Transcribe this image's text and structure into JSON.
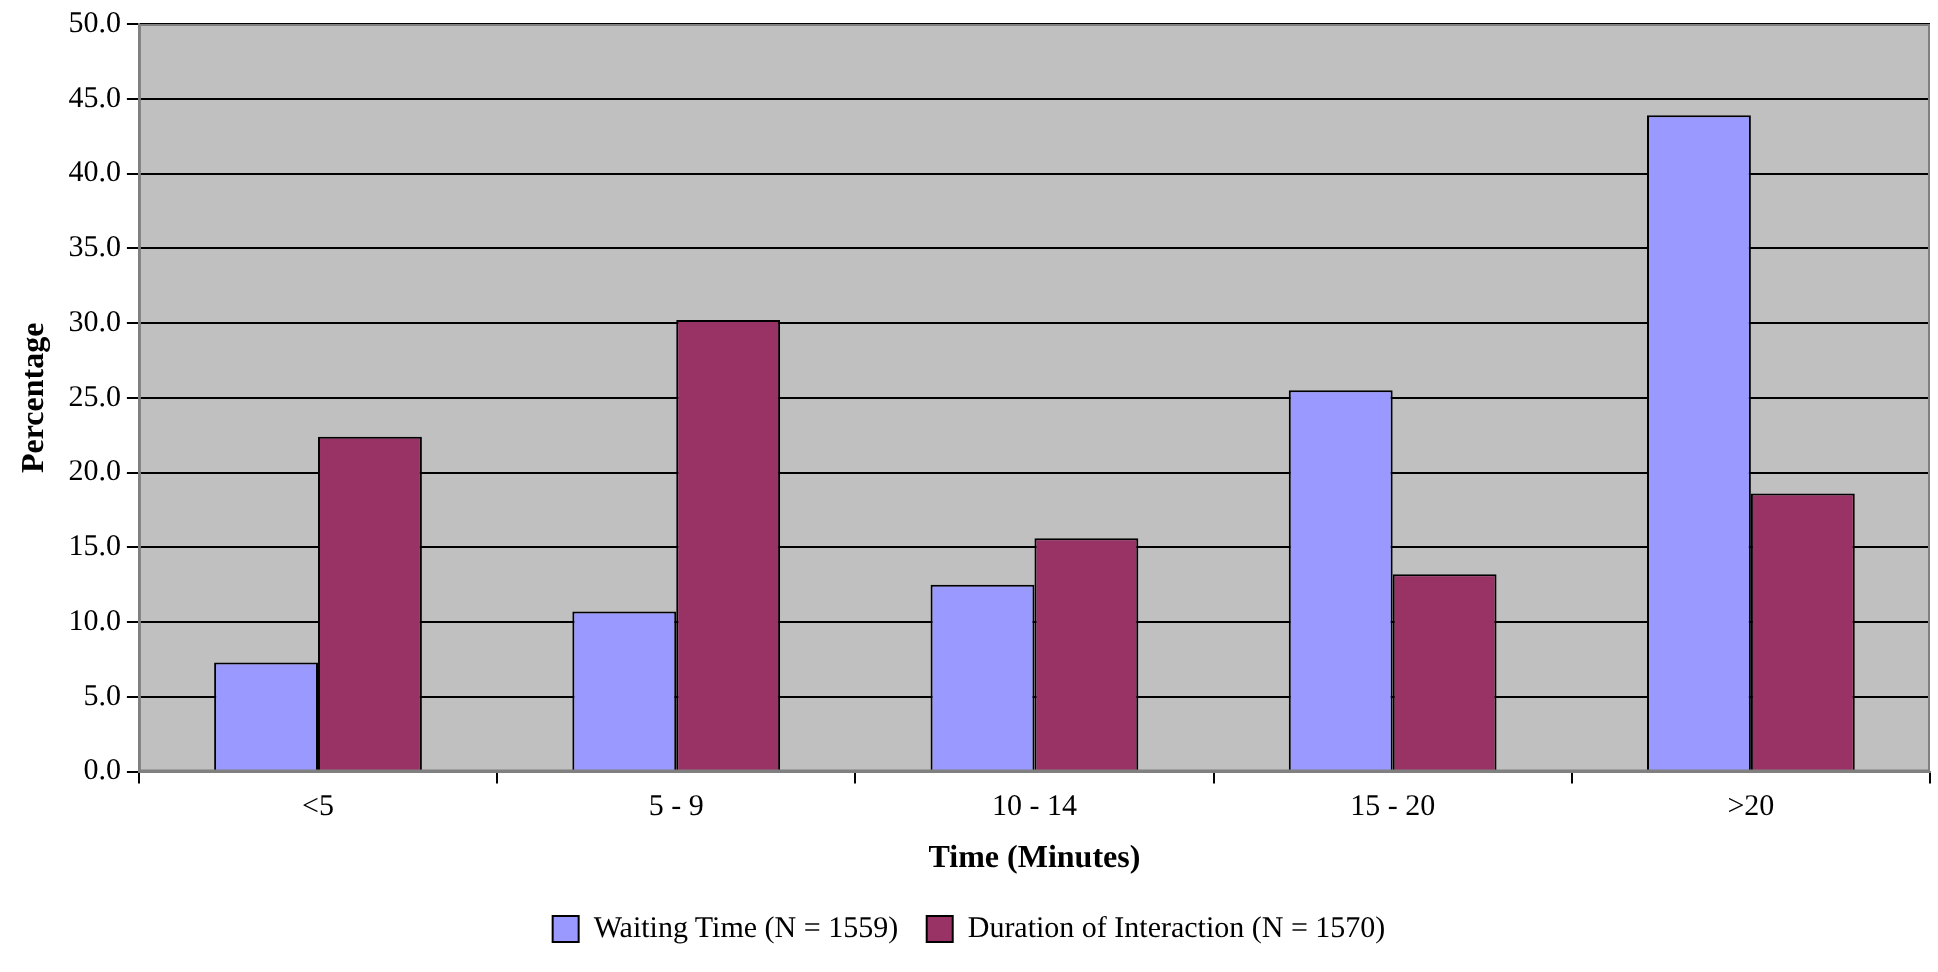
{
  "chart_data": {
    "type": "bar",
    "xlabel": "Time (Minutes)",
    "ylabel": "Percentage",
    "categories": [
      "<5",
      "5 - 9",
      "10 - 14",
      "15 - 20",
      ">20"
    ],
    "series": [
      {
        "name": "Waiting Time (N = 1559)",
        "color": "#9999ff",
        "values": [
          7.3,
          10.7,
          12.5,
          25.5,
          43.9
        ]
      },
      {
        "name": "Duration of Interaction (N = 1570)",
        "color": "#993366",
        "values": [
          22.4,
          30.2,
          15.6,
          13.2,
          18.6
        ]
      }
    ],
    "ylim": [
      0,
      50
    ],
    "yticks": [
      {
        "value": 0,
        "label": "0.0"
      },
      {
        "value": 5,
        "label": "5.0"
      },
      {
        "value": 10,
        "label": "10.0"
      },
      {
        "value": 15,
        "label": "15.0"
      },
      {
        "value": 20,
        "label": "20.0"
      },
      {
        "value": 25,
        "label": "25.0"
      },
      {
        "value": 30,
        "label": "30.0"
      },
      {
        "value": 35,
        "label": "35.0"
      },
      {
        "value": 40,
        "label": "40.0"
      },
      {
        "value": 45,
        "label": "45.0"
      },
      {
        "value": 50,
        "label": "50.0"
      }
    ],
    "grid": "y",
    "legend": "bottom"
  }
}
